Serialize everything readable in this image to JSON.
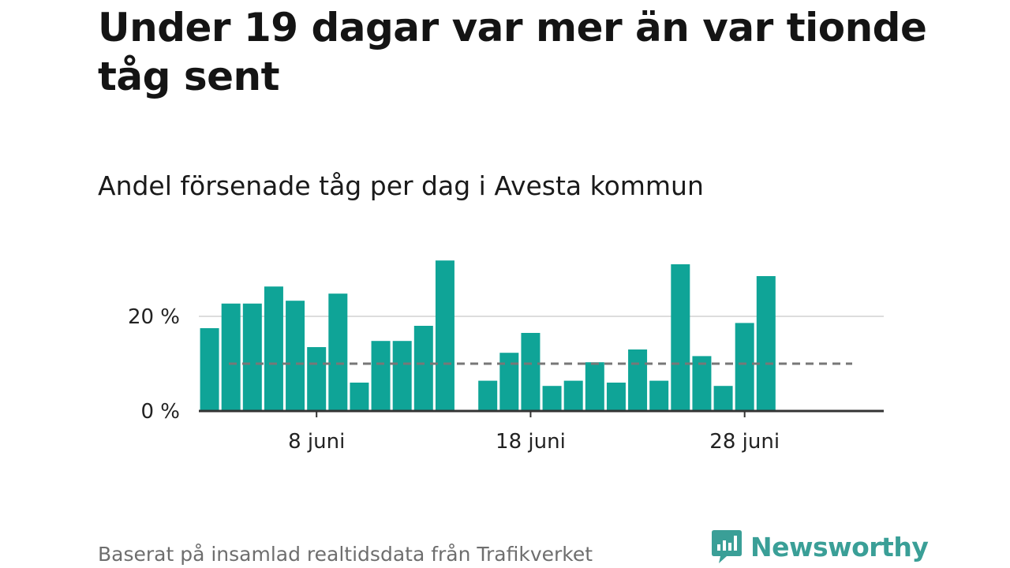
{
  "title": "Under 19 dagar var mer än var tionde tåg sent",
  "subtitle": "Andel försenade tåg per dag i Avesta kommun",
  "footer": {
    "source": "Baserat på insamlad realtidsdata från Trafikverket"
  },
  "brand": {
    "name": "Newsworthy",
    "icon": "newsworthy-logo-icon",
    "color": "#3a9f97"
  },
  "colors": {
    "bar": "#0fa497",
    "reference_line": "#777777",
    "grid": "#dddddd",
    "axis": "#333333"
  },
  "chart_data": {
    "type": "bar",
    "x_unit": "day of June",
    "days": [
      3,
      4,
      5,
      6,
      7,
      8,
      9,
      10,
      11,
      12,
      13,
      14,
      15,
      16,
      17,
      18,
      19,
      20,
      21,
      22,
      23,
      24,
      25,
      26,
      27,
      28,
      29
    ],
    "values": [
      17.5,
      22.7,
      22.7,
      26.3,
      23.3,
      13.5,
      24.8,
      6.0,
      14.8,
      14.8,
      18.0,
      31.8,
      null,
      6.4,
      12.3,
      16.5,
      5.3,
      6.4,
      10.3,
      6.0,
      13.0,
      6.4,
      31.0,
      11.6,
      5.3,
      18.6,
      28.5
    ],
    "x_ticks": [
      {
        "day": 8,
        "label": "8 juni"
      },
      {
        "day": 18,
        "label": "18 juni"
      },
      {
        "day": 28,
        "label": "28 juni"
      }
    ],
    "y_ticks": [
      {
        "value": 0,
        "label": "0 %"
      },
      {
        "value": 20,
        "label": "20 %"
      }
    ],
    "reference_line": {
      "value": 10,
      "style": "dashed"
    },
    "ylim": [
      0,
      32
    ],
    "xlim": [
      -0.5,
      31.5
    ],
    "grid": true,
    "legend": "none"
  }
}
